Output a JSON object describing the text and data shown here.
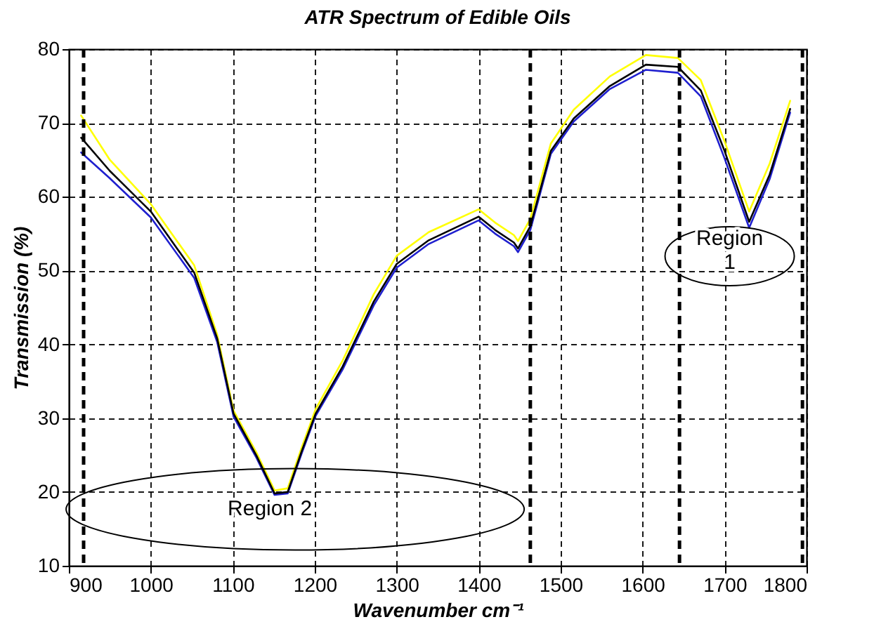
{
  "chart_data": {
    "type": "line",
    "title": "ATR Spectrum of Edible Oils",
    "xlabel": "Wavenumber cm⁻¹",
    "ylabel": "Transmission (%)",
    "x": [
      915,
      950,
      1000,
      1053,
      1081,
      1101,
      1129,
      1151,
      1167,
      1184,
      1201,
      1234,
      1272,
      1300,
      1339,
      1400,
      1420,
      1443,
      1448,
      1463,
      1488,
      1516,
      1560,
      1604,
      1643,
      1671,
      1700,
      1730,
      1755,
      1780
    ],
    "series": [
      {
        "color": "#ffff00",
        "values": [
          71,
          65,
          59,
          50.7,
          41.3,
          31,
          25.3,
          20.2,
          20.5,
          26,
          31.2,
          37.8,
          46.8,
          52,
          55.2,
          58.3,
          56.5,
          54.8,
          54,
          57,
          67.2,
          71.8,
          76.3,
          79.2,
          78.8,
          75.8,
          67.5,
          58,
          64.5,
          73
        ]
      },
      {
        "color": "#1f1fcf",
        "values": [
          66,
          62.5,
          57.2,
          49,
          40.3,
          30.2,
          24.6,
          19.6,
          19.8,
          25.2,
          30.3,
          36.6,
          45.3,
          50.4,
          53.6,
          56.8,
          55,
          53.3,
          52.5,
          55.5,
          65.8,
          70.2,
          74.6,
          77.2,
          76.8,
          73.6,
          65.2,
          55.8,
          62.4,
          71.4
        ]
      },
      {
        "color": "#000000",
        "values": [
          68,
          63.5,
          58,
          49.7,
          40.8,
          30.6,
          24.9,
          19.8,
          20,
          25.5,
          30.6,
          37,
          45.8,
          50.9,
          54.1,
          57.3,
          55.5,
          53.8,
          53,
          56,
          66.2,
          70.6,
          75,
          77.9,
          77.6,
          74.4,
          66.2,
          56.6,
          63,
          71.9
        ]
      }
    ],
    "xlim": [
      900,
      1800
    ],
    "xticks": [
      900,
      1000,
      1100,
      1200,
      1300,
      1400,
      1500,
      1600,
      1700,
      1800
    ],
    "ylim": [
      10,
      80
    ],
    "yticks": [
      10,
      20,
      30,
      40,
      50,
      60,
      70,
      80
    ],
    "grid": true,
    "ref_lines": [
      {
        "axis": "x",
        "value": 918,
        "color": "#000000",
        "line_style": "dashed"
      },
      {
        "axis": "x",
        "value": 1463,
        "color": "#000000",
        "line_style": "dashed"
      },
      {
        "axis": "x",
        "value": 1645,
        "color": "#000000",
        "line_style": "dashed"
      },
      {
        "axis": "x",
        "value": 1795,
        "color": "#000000",
        "line_style": "dashed"
      }
    ],
    "annotations": [
      "Region 2",
      "Region 1"
    ]
  }
}
